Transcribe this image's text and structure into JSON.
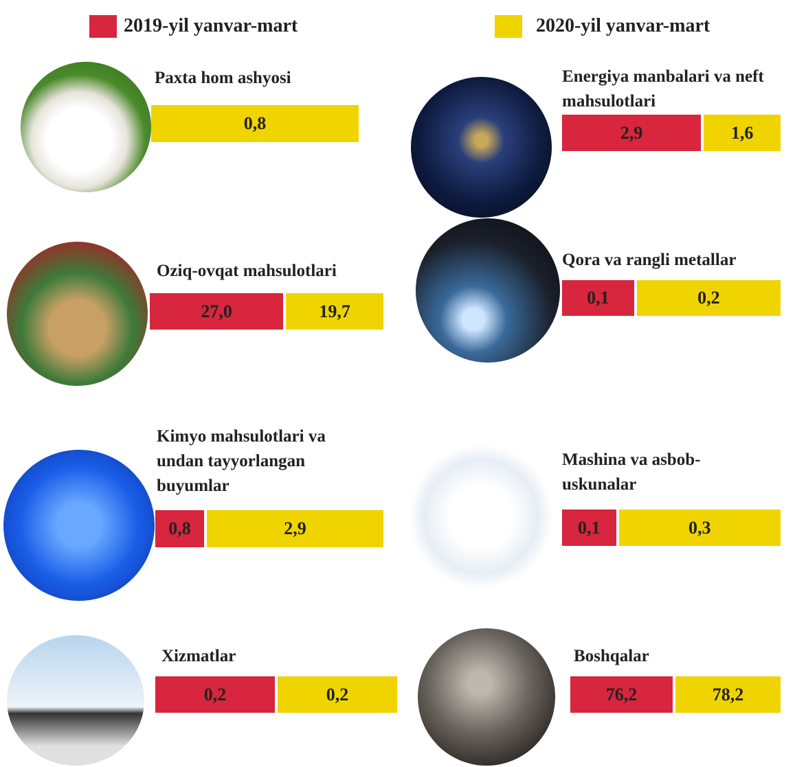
{
  "chart_data": {
    "type": "split-bar",
    "categories": [
      "Paxta hom ashyosi",
      "Energiya manbalari va neft mahsulotlari",
      "Oziq-ovqat mahsulotlari",
      "Qora va rangli metallar",
      "Kimyo mahsulotlari va undan tayyorlangan buyumlar",
      "Mashina va asbob-uskunalar",
      "Xizmatlar",
      "Boshqalar"
    ],
    "series": [
      {
        "name": "2019-yil yanvar-mart",
        "color": "#d7263d",
        "values": [
          null,
          2.9,
          27.0,
          0.1,
          0.8,
          0.1,
          0.2,
          76.2
        ],
        "value_labels": [
          null,
          "2,9",
          "27,0",
          "0,1",
          "0,8",
          "0,1",
          "0,2",
          "76,2"
        ]
      },
      {
        "name": "2020-yil yanvar-mart",
        "color": "#f0d400",
        "values": [
          0.8,
          1.6,
          19.7,
          0.2,
          2.9,
          0.3,
          0.2,
          78.2
        ],
        "value_labels": [
          "0,8",
          "1,6",
          "19,7",
          "0,2",
          "2,9",
          "0,3",
          "0,2",
          "78,2"
        ]
      }
    ]
  }
}
